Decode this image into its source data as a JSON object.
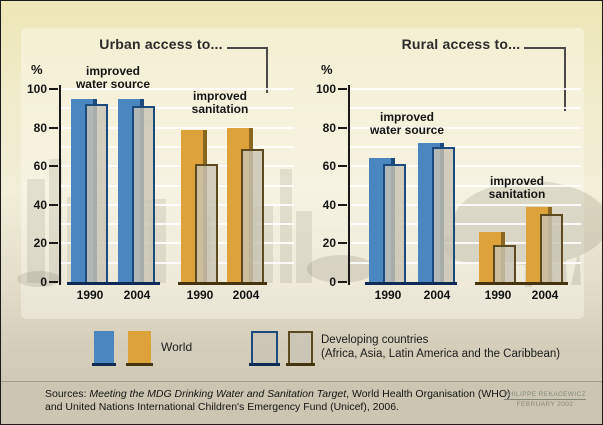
{
  "colors": {
    "world_water_fill": "#4A86C0",
    "world_water_edge": "#1C4A7C",
    "world_sanitation_fill": "#DEA23A",
    "world_sanitation_edge": "#8A671E",
    "developing_fill": "rgba(200,195,179,0.82)",
    "developing_outline_water": "#1C4A7C",
    "developing_outline_sanitation": "#5D4A20",
    "baseline_water": "#0D2B55",
    "baseline_sanitation": "#46330F"
  },
  "chart_data": [
    {
      "type": "bar",
      "title": "Urban access to...",
      "ylabel": "%",
      "ylim": [
        0,
        100
      ],
      "yticks": [
        0,
        20,
        40,
        60,
        80,
        100
      ],
      "grid": true,
      "legend_position": "bottom",
      "groups": [
        {
          "label": "improved water source",
          "categories": [
            "1990",
            "2004"
          ]
        },
        {
          "label": "improved sanitation",
          "categories": [
            "1990",
            "2004"
          ]
        }
      ],
      "series": [
        {
          "name": "World",
          "values": [
            95,
            95,
            79,
            80
          ]
        },
        {
          "name": "Developing countries",
          "values": [
            92,
            91,
            61,
            69
          ]
        }
      ]
    },
    {
      "type": "bar",
      "title": "Rural access to...",
      "ylabel": "%",
      "ylim": [
        0,
        100
      ],
      "yticks": [
        0,
        20,
        40,
        60,
        80,
        100
      ],
      "grid": true,
      "legend_position": "bottom",
      "groups": [
        {
          "label": "improved water source",
          "categories": [
            "1990",
            "2004"
          ]
        },
        {
          "label": "improved sanitation",
          "categories": [
            "1990",
            "2004"
          ]
        }
      ],
      "series": [
        {
          "name": "World",
          "values": [
            64,
            72,
            26,
            39
          ]
        },
        {
          "name": "Developing countries",
          "values": [
            61,
            70,
            19,
            35
          ]
        }
      ]
    }
  ],
  "legend": {
    "world_label": "World",
    "developing_label": "Developing countries",
    "developing_sublabel": "(Africa, Asia, Latin America and the Caribbean)"
  },
  "footer": {
    "sources_prefix": "Sources: ",
    "sources_italic": "Meeting the MDG Drinking Water and Sanitation Target",
    "sources_line1_rest": ", World Health Organisation (WHO)",
    "sources_line2": "and United Nations International Children's Emergency Fund (Unicef), 2006.",
    "credit_name": "PHILIPPE REKACEWICZ",
    "credit_date": "FEBRUARY 2002"
  }
}
